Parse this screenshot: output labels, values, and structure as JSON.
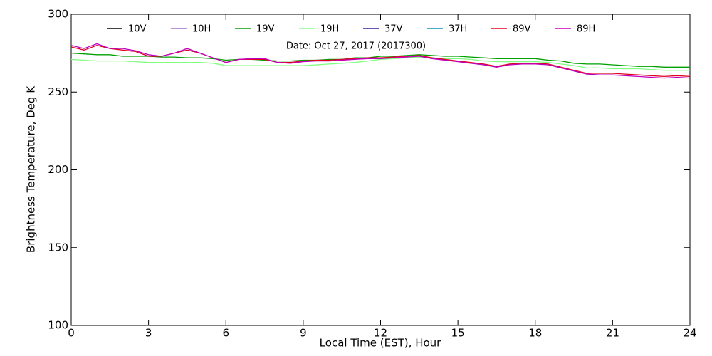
{
  "chart_data": {
    "type": "line",
    "annotation": "Date: Oct 27, 2017 (2017300)",
    "xlabel": "Local Time (EST), Hour",
    "ylabel": "Brightness Temperature, Deg K",
    "xlim": [
      0,
      24
    ],
    "xticks": [
      0,
      3,
      6,
      9,
      12,
      15,
      18,
      21,
      24
    ],
    "ylim": [
      100,
      300
    ],
    "yticks": [
      100,
      150,
      200,
      250,
      300
    ],
    "x": [
      0,
      0.5,
      1,
      1.5,
      2,
      2.5,
      3,
      3.5,
      4,
      4.5,
      5,
      5.5,
      6,
      6.5,
      7,
      7.5,
      8,
      8.5,
      9,
      9.5,
      10,
      10.5,
      11,
      11.5,
      12,
      12.5,
      13,
      13.5,
      14,
      14.5,
      15,
      15.5,
      16,
      16.5,
      17,
      17.5,
      18,
      18.5,
      19,
      19.5,
      20,
      20.5,
      21,
      21.5,
      22,
      22.5,
      23,
      23.5,
      24
    ],
    "series": [
      {
        "name": "10V",
        "color": "#000000",
        "values": [
          null,
          null,
          null,
          null,
          null,
          null,
          null,
          null,
          null,
          null,
          null,
          null,
          null,
          null,
          null,
          null,
          null,
          null,
          null,
          null,
          null,
          null,
          null,
          null,
          null,
          null,
          null,
          null,
          null,
          null,
          null,
          null,
          null,
          null,
          null,
          null,
          null,
          null,
          null,
          null,
          null,
          null,
          null,
          null,
          null,
          null,
          null,
          null,
          null
        ]
      },
      {
        "name": "10H",
        "color": "#a070d0",
        "values": [
          null,
          null,
          null,
          null,
          null,
          null,
          null,
          null,
          null,
          null,
          null,
          null,
          null,
          null,
          null,
          null,
          null,
          null,
          null,
          null,
          null,
          null,
          null,
          null,
          null,
          null,
          null,
          null,
          null,
          null,
          null,
          null,
          null,
          null,
          null,
          null,
          null,
          null,
          null,
          null,
          null,
          null,
          null,
          null,
          null,
          null,
          null,
          null,
          null
        ]
      },
      {
        "name": "19V",
        "color": "#00a000",
        "values": [
          275,
          274.5,
          274,
          274,
          273,
          273,
          273,
          272.5,
          272.5,
          272,
          272,
          271.5,
          270.5,
          271,
          271,
          270.5,
          270,
          270,
          270.5,
          270.5,
          271,
          271,
          272,
          272,
          273,
          273,
          273.5,
          274,
          273.5,
          273,
          273,
          272.5,
          272,
          271.5,
          271.5,
          271.5,
          271.5,
          270.5,
          270,
          268.5,
          268,
          268,
          267.5,
          267,
          266.5,
          266.5,
          266,
          266,
          266
        ]
      },
      {
        "name": "19H",
        "color": "#80ff80",
        "values": [
          271,
          270.5,
          270,
          270,
          270,
          269.5,
          269,
          269,
          269,
          269,
          269,
          268.5,
          267,
          267,
          267,
          267,
          267,
          267,
          267,
          267.5,
          268,
          268.5,
          269,
          270,
          271,
          271.5,
          272,
          272.5,
          272,
          271.5,
          271.5,
          271,
          270,
          269.5,
          269.5,
          269.5,
          269.5,
          269,
          268,
          267,
          265.5,
          265.5,
          265,
          265,
          265,
          264.5,
          264,
          264,
          264
        ]
      },
      {
        "name": "37V",
        "color": "#3020a0",
        "values": [
          null,
          null,
          null,
          null,
          null,
          null,
          null,
          null,
          null,
          null,
          null,
          null,
          null,
          null,
          null,
          null,
          null,
          null,
          null,
          null,
          null,
          null,
          null,
          null,
          null,
          null,
          null,
          null,
          null,
          null,
          null,
          null,
          null,
          null,
          null,
          null,
          null,
          null,
          null,
          null,
          null,
          null,
          null,
          null,
          null,
          null,
          null,
          null,
          null
        ]
      },
      {
        "name": "37H",
        "color": "#1090c0",
        "values": [
          null,
          null,
          null,
          null,
          null,
          null,
          null,
          null,
          null,
          null,
          null,
          null,
          null,
          null,
          null,
          null,
          null,
          null,
          null,
          null,
          null,
          null,
          null,
          null,
          null,
          null,
          null,
          null,
          null,
          null,
          null,
          null,
          null,
          null,
          null,
          null,
          null,
          null,
          null,
          null,
          null,
          null,
          null,
          null,
          null,
          null,
          null,
          null,
          null
        ]
      },
      {
        "name": "89V",
        "color": "#e00020",
        "values": [
          279,
          277,
          280,
          278,
          277,
          276,
          273,
          273,
          275,
          277,
          275,
          272,
          269,
          271,
          271,
          271,
          269,
          269,
          270,
          270.5,
          270.5,
          271,
          271.5,
          272,
          272,
          272.5,
          273,
          273.5,
          272,
          271,
          270,
          269,
          268,
          266.5,
          268,
          268.5,
          268.5,
          268,
          266,
          264,
          262,
          262,
          262,
          261.5,
          261,
          260.5,
          260,
          260.5,
          260
        ]
      },
      {
        "name": "89H",
        "color": "#c000c0",
        "values": [
          280,
          278,
          281,
          278,
          278,
          276.5,
          274,
          273,
          275,
          278,
          275,
          272,
          269,
          271,
          271.5,
          271.5,
          269,
          268.5,
          269.5,
          270,
          270,
          270.5,
          271,
          271.5,
          271.5,
          272,
          272.5,
          273,
          271.5,
          270.5,
          269.5,
          268.5,
          267.5,
          266,
          267.5,
          268,
          268,
          267.5,
          265.5,
          263.5,
          261.5,
          261,
          261,
          260.5,
          260,
          259.5,
          259,
          259.5,
          259
        ]
      }
    ]
  }
}
